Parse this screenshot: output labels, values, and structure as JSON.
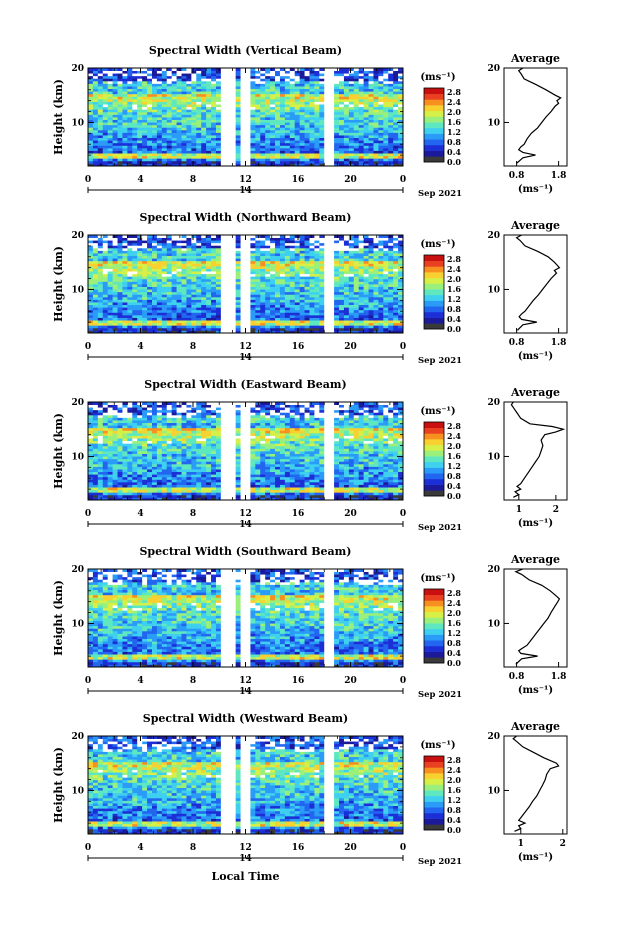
{
  "x_axis_label": "Local Time",
  "date_label": "Sep 2021",
  "day_label": "14",
  "time_ticks": [
    "0",
    "4",
    "8",
    "12",
    "16",
    "20",
    "0"
  ],
  "height_ticks": [
    "10",
    "20"
  ],
  "colorbar": {
    "unit_label": "(ms⁻¹)",
    "ticks": [
      "0.0",
      "0.4",
      "0.8",
      "1.2",
      "1.6",
      "2.0",
      "2.4",
      "2.8"
    ],
    "colors": [
      "#3a3a3a",
      "#1a1a9a",
      "#1c2fd6",
      "#2266f0",
      "#2a9cf8",
      "#3fd0f0",
      "#5fe8c0",
      "#9af07a",
      "#d6f048",
      "#f8d030",
      "#f89020",
      "#e84020",
      "#c81010"
    ]
  },
  "panels": [
    {
      "title": "Spectral Width (Vertical Beam)",
      "y_axis_label": "Height (km)",
      "profile_title": "Average",
      "profile_xlabel": "(ms⁻¹)",
      "profile_xticks": [
        "0.8",
        "1.8"
      ],
      "chart_data": {
        "type": "heatmap",
        "x_label": "Local Time",
        "x_range": [
          0,
          24
        ],
        "y_label": "Height (km)",
        "y_range": [
          2,
          20
        ],
        "z_unit": "ms⁻¹",
        "z_range": [
          0.0,
          3.0
        ],
        "data_gaps_hours": [
          [
            10.0,
            11.2
          ],
          [
            11.7,
            12.2
          ],
          [
            18.0,
            18.8
          ]
        ],
        "profile": {
          "title": "Average",
          "x_ticks": [
            0.8,
            1.8
          ],
          "x_range": [
            0.5,
            2.0
          ],
          "heights": [
            2.5,
            3.5,
            4.0,
            4.5,
            5.0,
            5.5,
            6.0,
            7.0,
            8.0,
            9.0,
            10.0,
            11.0,
            12.0,
            13.0,
            13.5,
            14.0,
            14.5,
            15.0,
            16.0,
            17.0,
            18.0,
            19.0,
            19.5,
            20.0
          ],
          "values": [
            0.8,
            0.95,
            1.25,
            0.95,
            0.85,
            0.9,
            0.98,
            1.05,
            1.15,
            1.3,
            1.4,
            1.5,
            1.62,
            1.72,
            1.8,
            1.76,
            1.85,
            1.72,
            1.5,
            1.25,
            0.98,
            0.9,
            0.85,
            0.95
          ]
        }
      }
    },
    {
      "title": "Spectral Width (Northward Beam)",
      "y_axis_label": "Height (km)",
      "profile_title": "Average",
      "profile_xlabel": "(ms⁻¹)",
      "profile_xticks": [
        "0.8",
        "1.8"
      ],
      "chart_data": {
        "type": "heatmap",
        "x_label": "Local Time",
        "x_range": [
          0,
          24
        ],
        "y_label": "Height (km)",
        "y_range": [
          2,
          20
        ],
        "z_unit": "ms⁻¹",
        "z_range": [
          0.0,
          3.0
        ],
        "data_gaps_hours": [
          [
            10.0,
            11.2
          ],
          [
            11.7,
            12.2
          ],
          [
            18.0,
            18.8
          ]
        ],
        "profile": {
          "title": "Average",
          "x_ticks": [
            0.8,
            1.8
          ],
          "x_range": [
            0.5,
            2.0
          ],
          "heights": [
            2.5,
            3.5,
            4.0,
            4.5,
            5.0,
            5.5,
            6.0,
            7.0,
            8.0,
            9.0,
            10.0,
            11.0,
            12.0,
            13.0,
            13.5,
            14.0,
            14.5,
            15.0,
            16.0,
            17.0,
            18.0,
            19.0,
            19.5,
            20.0
          ],
          "values": [
            0.82,
            0.95,
            1.28,
            0.92,
            0.86,
            0.92,
            1.0,
            1.1,
            1.2,
            1.32,
            1.42,
            1.52,
            1.62,
            1.75,
            1.7,
            1.82,
            1.76,
            1.7,
            1.55,
            1.3,
            1.0,
            0.88,
            0.8,
            0.92
          ]
        }
      }
    },
    {
      "title": "Spectral Width (Eastward Beam)",
      "y_axis_label": "Height (km)",
      "profile_title": "Average",
      "profile_xlabel": "(ms⁻¹)",
      "profile_xticks": [
        "1",
        "2"
      ],
      "chart_data": {
        "type": "heatmap",
        "x_label": "Local Time",
        "x_range": [
          0,
          24
        ],
        "y_label": "Height (km)",
        "y_range": [
          2,
          20
        ],
        "z_unit": "ms⁻¹",
        "z_range": [
          0.0,
          3.0
        ],
        "data_gaps_hours": [
          [
            10.0,
            11.2
          ],
          [
            11.7,
            12.2
          ],
          [
            18.0,
            18.8
          ]
        ],
        "profile": {
          "title": "Average",
          "x_ticks": [
            1,
            2
          ],
          "x_range": [
            0.6,
            2.3
          ],
          "heights": [
            2.5,
            3.0,
            3.5,
            4.0,
            4.5,
            5.0,
            6.0,
            7.0,
            8.0,
            9.0,
            10.0,
            11.0,
            12.0,
            13.0,
            14.0,
            14.5,
            15.0,
            15.5,
            16.0,
            17.0,
            18.0,
            19.0,
            19.5,
            20.0
          ],
          "values": [
            0.85,
            1.0,
            0.9,
            1.05,
            0.95,
            1.05,
            1.15,
            1.25,
            1.35,
            1.45,
            1.55,
            1.6,
            1.65,
            1.6,
            1.7,
            2.0,
            2.2,
            1.9,
            1.3,
            1.05,
            0.95,
            0.85,
            0.8,
            0.85
          ]
        }
      }
    },
    {
      "title": "Spectral Width (Southward Beam)",
      "y_axis_label": "Height (km)",
      "profile_title": "Average",
      "profile_xlabel": "(ms⁻¹)",
      "profile_xticks": [
        "0.8",
        "1.8"
      ],
      "chart_data": {
        "type": "heatmap",
        "x_label": "Local Time",
        "x_range": [
          0,
          24
        ],
        "y_label": "Height (km)",
        "y_range": [
          2,
          20
        ],
        "z_unit": "ms⁻¹",
        "z_range": [
          0.0,
          3.0
        ],
        "data_gaps_hours": [
          [
            10.0,
            11.2
          ],
          [
            11.7,
            12.2
          ],
          [
            18.0,
            18.8
          ]
        ],
        "profile": {
          "title": "Average",
          "x_ticks": [
            0.8,
            1.8
          ],
          "x_range": [
            0.5,
            2.0
          ],
          "heights": [
            2.5,
            3.5,
            4.0,
            4.5,
            5.0,
            5.5,
            6.0,
            7.0,
            8.0,
            9.0,
            10.0,
            11.0,
            12.0,
            13.0,
            14.0,
            14.5,
            15.0,
            16.0,
            17.0,
            18.0,
            19.0,
            19.5,
            20.0
          ],
          "values": [
            0.78,
            0.92,
            1.3,
            0.9,
            0.85,
            0.95,
            1.05,
            1.15,
            1.25,
            1.35,
            1.45,
            1.55,
            1.62,
            1.7,
            1.78,
            1.82,
            1.75,
            1.6,
            1.4,
            1.1,
            0.92,
            0.78,
            0.95
          ]
        }
      }
    },
    {
      "title": "Spectral Width (Westward Beam)",
      "y_axis_label": "Height (km)",
      "profile_title": "Average",
      "profile_xlabel": "(ms⁻¹)",
      "profile_xticks": [
        "1",
        "2"
      ],
      "chart_data": {
        "type": "heatmap",
        "x_label": "Local Time",
        "x_range": [
          0,
          24
        ],
        "y_label": "Height (km)",
        "y_range": [
          2,
          20
        ],
        "z_unit": "ms⁻¹",
        "z_range": [
          0.0,
          3.0
        ],
        "data_gaps_hours": [
          [
            10.0,
            11.2
          ],
          [
            11.7,
            12.2
          ],
          [
            18.0,
            18.8
          ]
        ],
        "profile": {
          "title": "Average",
          "x_ticks": [
            1,
            2
          ],
          "x_range": [
            0.6,
            2.1
          ],
          "heights": [
            2.5,
            3.0,
            3.5,
            4.0,
            4.5,
            5.0,
            6.0,
            7.0,
            8.0,
            9.0,
            10.0,
            11.0,
            12.0,
            13.0,
            14.0,
            14.5,
            15.0,
            16.0,
            17.0,
            18.0,
            19.0,
            19.5,
            20.0
          ],
          "values": [
            0.85,
            1.0,
            0.95,
            1.1,
            0.95,
            1.0,
            1.1,
            1.2,
            1.28,
            1.38,
            1.45,
            1.52,
            1.58,
            1.62,
            1.7,
            1.9,
            1.85,
            1.55,
            1.3,
            1.05,
            0.9,
            0.82,
            0.9
          ]
        }
      }
    }
  ]
}
